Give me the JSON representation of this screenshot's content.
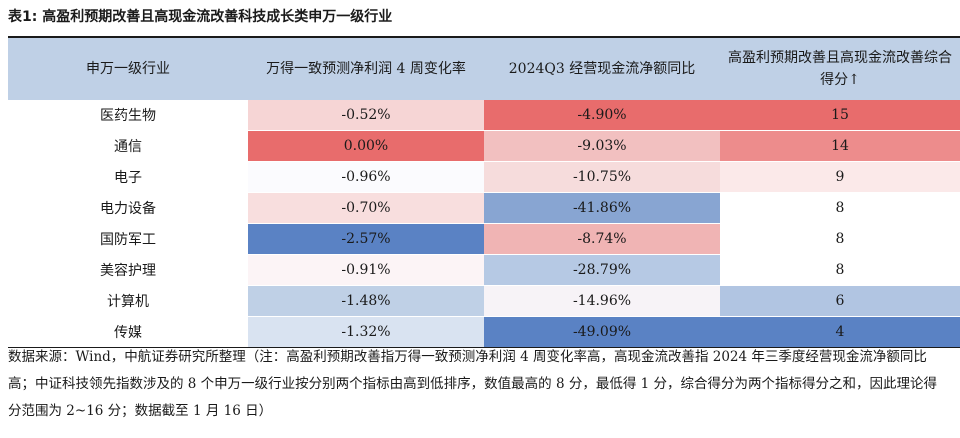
{
  "title": "表1: 高盈利预期改善且高现金流改善科技成长类申万一级行业",
  "headers": {
    "industry": "申万一级行业",
    "profit": "万得一致预测净利润 4 周变化率",
    "cashflow": "2024Q3 经营现金流净额同比",
    "score": "高盈利预期改善且高现金流改善综合得分↑"
  },
  "rows": [
    {
      "industry": "医药生物",
      "profit": "-0.52%",
      "cashflow": "-4.90%",
      "score": "15",
      "profit_color": "#f6d5d5",
      "cashflow_color": "#e86c6c",
      "score_color": "#e86c6c"
    },
    {
      "industry": "通信",
      "profit": "0.00%",
      "cashflow": "-9.03%",
      "score": "14",
      "profit_color": "#e86c6c",
      "cashflow_color": "#f2c0c0",
      "score_color": "#ed8c8c"
    },
    {
      "industry": "电子",
      "profit": "-0.96%",
      "cashflow": "-10.75%",
      "score": "9",
      "profit_color": "#fbfbfe",
      "cashflow_color": "#f6dcdc",
      "score_color": "#fbe9e9"
    },
    {
      "industry": "电力设备",
      "profit": "-0.70%",
      "cashflow": "-41.86%",
      "score": "8",
      "profit_color": "#f8dede",
      "cashflow_color": "#88a5d2",
      "score_color": "#ffffff"
    },
    {
      "industry": "国防军工",
      "profit": "-2.57%",
      "cashflow": "-8.74%",
      "score": "8",
      "profit_color": "#5a82c4",
      "cashflow_color": "#f0b4b4",
      "score_color": "#ffffff"
    },
    {
      "industry": "美容护理",
      "profit": "-0.91%",
      "cashflow": "-28.79%",
      "score": "8",
      "profit_color": "#fcf4f6",
      "cashflow_color": "#b6c9e4",
      "score_color": "#ffffff"
    },
    {
      "industry": "计算机",
      "profit": "-1.48%",
      "cashflow": "-14.96%",
      "score": "6",
      "profit_color": "#bfd0e6",
      "cashflow_color": "#f7f3f7",
      "score_color": "#b1c5e2"
    },
    {
      "industry": "传媒",
      "profit": "-1.32%",
      "cashflow": "-49.09%",
      "score": "4",
      "profit_color": "#d9e3f1",
      "cashflow_color": "#5a82c4",
      "score_color": "#5a82c4"
    }
  ],
  "source": "数据来源：Wind，中航证券研究所整理（注：高盈利预期改善指万得一致预测净利润 4 周变化率高，高现金流改善指 2024 年三季度经营现金流净额同比高；中证科技领先指数涉及的 8 个申万一级行业按分别两个指标由高到低排序，数值最高的 8 分，最低得 1 分，综合得分为两个指标得分之和，因此理论得分范围为 2~16 分；数据截至 1 月 16 日）"
}
